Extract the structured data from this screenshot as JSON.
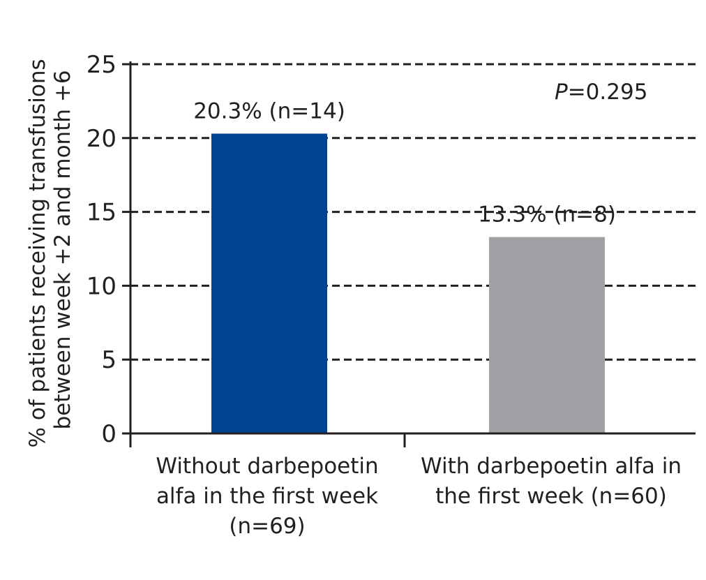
{
  "chart_data": {
    "type": "bar",
    "ylabel_lines": [
      "% of patients receiving transfusions",
      "between week +2 and month +6"
    ],
    "ylim": [
      0,
      25
    ],
    "yticks": [
      "0",
      "5",
      "10",
      "15",
      "20",
      "25"
    ],
    "grid": true,
    "categories": [
      {
        "label_lines": [
          "Without darbepoetin",
          "alfa in the first week",
          "(n=69)"
        ],
        "value": 20.3,
        "value_label": "20.3% (n=14)",
        "color": "#004393"
      },
      {
        "label_lines": [
          "With darbepoetin alfa in",
          "the first week (n=60)"
        ],
        "value": 13.3,
        "value_label": "13.3% (n=8)",
        "color": "#a0a1a4"
      }
    ],
    "annotation": {
      "p_symbol": "P",
      "p_value": "=0.295"
    }
  }
}
